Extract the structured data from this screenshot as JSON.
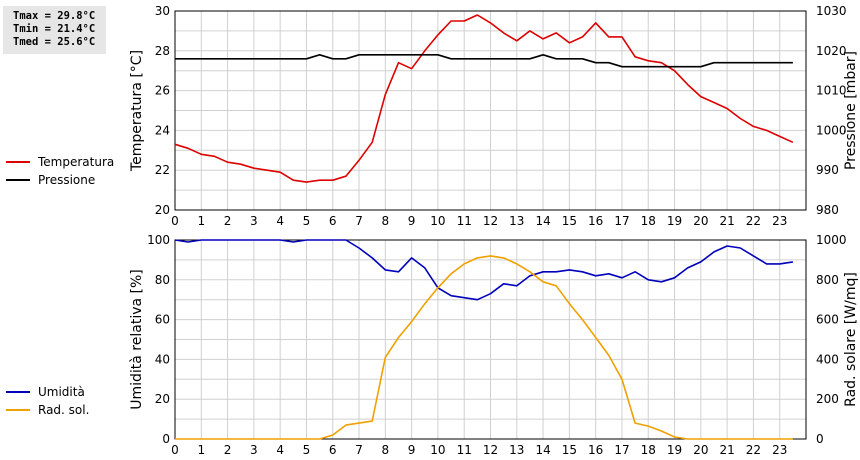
{
  "stats": {
    "tmax": "Tmax = 29.8°C",
    "tmin": "Tmin = 21.4°C",
    "tmed": "Tmed = 25.6°C"
  },
  "colors": {
    "temperature": "#dd0000",
    "pressure": "#000000",
    "humidity": "#0000bb",
    "radiation": "#f0a000",
    "grid": "#d0d0d0"
  },
  "chart_data": [
    {
      "type": "line",
      "x_ticks": [
        "0",
        "1",
        "2",
        "3",
        "4",
        "5",
        "6",
        "7",
        "8",
        "9",
        "10",
        "11",
        "12",
        "13",
        "14",
        "15",
        "16",
        "17",
        "18",
        "19",
        "20",
        "21",
        "22",
        "23"
      ],
      "xlim": [
        0,
        24
      ],
      "ylabel": "Temperatura [°C]",
      "ylabel_right": "Pressione [mbar]",
      "ylim": [
        20,
        30
      ],
      "y_ticks": [
        "20",
        "22",
        "24",
        "26",
        "28",
        "30"
      ],
      "ylim_right": [
        980,
        1030
      ],
      "y_ticks_right": [
        "980",
        "990",
        "1000",
        "1010",
        "1020",
        "1030"
      ],
      "grid": true,
      "legend": "left",
      "series": [
        {
          "name": "Temperatura",
          "axis": "left",
          "color": "#dd0000",
          "x": [
            0,
            0.5,
            1,
            1.5,
            2,
            2.5,
            3,
            3.5,
            4,
            4.5,
            5,
            5.5,
            6,
            6.5,
            7,
            7.5,
            8,
            8.5,
            9,
            9.5,
            10,
            10.5,
            11,
            11.5,
            12,
            12.5,
            13,
            13.5,
            14,
            14.5,
            15,
            15.5,
            16,
            16.5,
            17,
            17.5,
            18,
            18.5,
            19,
            19.5,
            20,
            20.5,
            21,
            21.5,
            22,
            22.5,
            23,
            23.5
          ],
          "y": [
            23.3,
            23.1,
            22.8,
            22.7,
            22.4,
            22.3,
            22.1,
            22.0,
            21.9,
            21.5,
            21.4,
            21.5,
            21.5,
            21.7,
            22.5,
            23.4,
            25.8,
            27.4,
            27.1,
            28.0,
            28.8,
            29.5,
            29.5,
            29.8,
            29.4,
            28.9,
            28.5,
            29.0,
            28.6,
            28.9,
            28.4,
            28.7,
            29.4,
            28.7,
            28.7,
            27.7,
            27.5,
            27.4,
            27.0,
            26.3,
            25.7,
            25.4,
            25.1,
            24.6,
            24.2,
            24.0,
            23.7,
            23.4
          ]
        },
        {
          "name": "Pressione",
          "axis": "right",
          "color": "#000000",
          "x": [
            0,
            0.5,
            1,
            1.5,
            2,
            2.5,
            3,
            3.5,
            4,
            4.5,
            5,
            5.5,
            6,
            6.5,
            7,
            7.5,
            8,
            8.5,
            9,
            9.5,
            10,
            10.5,
            11,
            11.5,
            12,
            12.5,
            13,
            13.5,
            14,
            14.5,
            15,
            15.5,
            16,
            16.5,
            17,
            17.5,
            18,
            18.5,
            19,
            19.5,
            20,
            20.5,
            21,
            21.5,
            22,
            22.5,
            23,
            23.5
          ],
          "y": [
            1018,
            1018,
            1018,
            1018,
            1018,
            1018,
            1018,
            1018,
            1018,
            1018,
            1018,
            1019,
            1018,
            1018,
            1019,
            1019,
            1019,
            1019,
            1019,
            1019,
            1019,
            1018,
            1018,
            1018,
            1018,
            1018,
            1018,
            1018,
            1019,
            1018,
            1018,
            1018,
            1017,
            1017,
            1016,
            1016,
            1016,
            1016,
            1016,
            1016,
            1016,
            1017,
            1017,
            1017,
            1017,
            1017,
            1017,
            1017
          ]
        }
      ]
    },
    {
      "type": "line",
      "x_ticks": [
        "0",
        "1",
        "2",
        "3",
        "4",
        "5",
        "6",
        "7",
        "8",
        "9",
        "10",
        "11",
        "12",
        "13",
        "14",
        "15",
        "16",
        "17",
        "18",
        "19",
        "20",
        "21",
        "22",
        "23"
      ],
      "xlim": [
        0,
        24
      ],
      "ylabel": "Umidità relativa [%]",
      "ylabel_right": "Rad. solare [W/mq]",
      "ylim": [
        0,
        100
      ],
      "y_ticks": [
        "0",
        "20",
        "40",
        "60",
        "80",
        "100"
      ],
      "ylim_right": [
        0,
        1000
      ],
      "y_ticks_right": [
        "0",
        "200",
        "400",
        "600",
        "800",
        "1000"
      ],
      "grid": true,
      "legend": "left",
      "series": [
        {
          "name": "Umidità",
          "axis": "left",
          "color": "#0000bb",
          "x": [
            0,
            0.5,
            1,
            1.5,
            2,
            2.5,
            3,
            3.5,
            4,
            4.5,
            5,
            5.5,
            6,
            6.5,
            7,
            7.5,
            8,
            8.5,
            9,
            9.5,
            10,
            10.5,
            11,
            11.5,
            12,
            12.5,
            13,
            13.5,
            14,
            14.5,
            15,
            15.5,
            16,
            16.5,
            17,
            17.5,
            18,
            18.5,
            19,
            19.5,
            20,
            20.5,
            21,
            21.5,
            22,
            22.5,
            23,
            23.5
          ],
          "y": [
            100,
            99,
            100,
            100,
            100,
            100,
            100,
            100,
            100,
            99,
            100,
            100,
            100,
            100,
            96,
            91,
            85,
            84,
            91,
            86,
            76,
            72,
            71,
            70,
            73,
            78,
            77,
            82,
            84,
            84,
            85,
            84,
            82,
            83,
            81,
            84,
            80,
            79,
            81,
            86,
            89,
            94,
            97,
            96,
            92,
            88,
            88,
            89
          ]
        },
        {
          "name": "Rad. sol.",
          "axis": "right",
          "color": "#f0a000",
          "x": [
            0,
            0.5,
            1,
            1.5,
            2,
            2.5,
            3,
            3.5,
            4,
            4.5,
            5,
            5.5,
            6,
            6.5,
            7,
            7.5,
            8,
            8.5,
            9,
            9.5,
            10,
            10.5,
            11,
            11.5,
            12,
            12.5,
            13,
            13.5,
            14,
            14.5,
            15,
            15.5,
            16,
            16.5,
            17,
            17.5,
            18,
            18.5,
            19,
            19.5,
            20,
            20.5,
            21,
            21.5,
            22,
            22.5,
            23,
            23.5
          ],
          "y": [
            0,
            0,
            0,
            0,
            0,
            0,
            0,
            0,
            0,
            0,
            0,
            0,
            20,
            70,
            80,
            90,
            410,
            510,
            590,
            680,
            760,
            830,
            880,
            910,
            920,
            910,
            880,
            840,
            790,
            770,
            680,
            600,
            510,
            420,
            300,
            80,
            65,
            40,
            10,
            0,
            0,
            0,
            0,
            0,
            0,
            0,
            0,
            0
          ]
        }
      ]
    }
  ]
}
